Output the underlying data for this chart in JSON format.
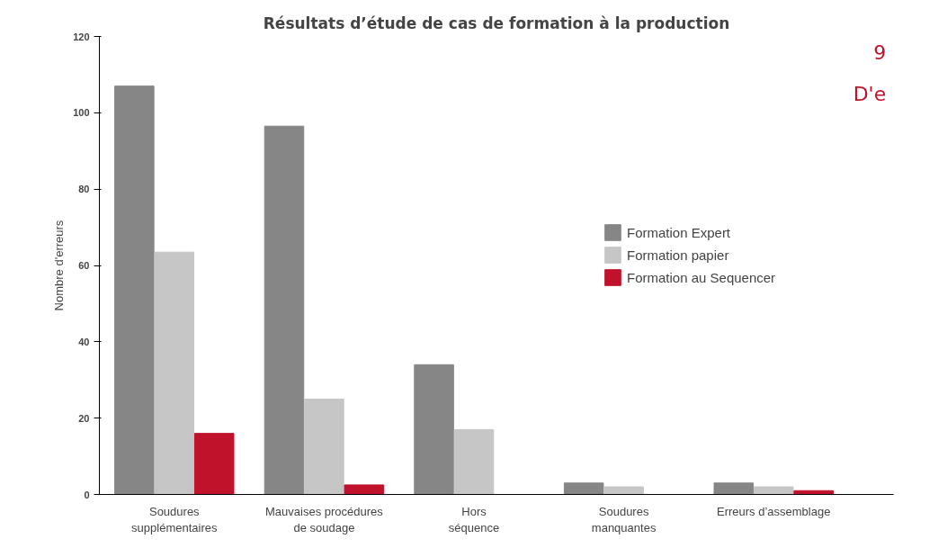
{
  "chart_data": {
    "type": "bar",
    "title": "Résultats d’étude de cas de formation à la production",
    "ylabel": "Nombre d'erreurs",
    "categories": [
      "Soudures\nsupplémentaires",
      "Mauvaises procédures\nde soudage",
      "Hors\nséquence",
      "Soudures\nmanquantes",
      "Erreurs d’assemblage"
    ],
    "series": [
      {
        "name": "Formation Expert",
        "color": "#868686",
        "values": [
          107,
          96.5,
          34,
          3,
          3
        ]
      },
      {
        "name": "Formation papier",
        "color": "#c6c6c6",
        "values": [
          63.5,
          25,
          17,
          2,
          2
        ]
      },
      {
        "name": "Formation au Sequencer",
        "color": "#c0122b",
        "values": [
          16,
          2.5,
          0,
          0,
          1
        ]
      }
    ],
    "ylim": [
      0,
      120
    ],
    "yticks": [
      0,
      20,
      40,
      60,
      80,
      100,
      120
    ],
    "grid": false,
    "legend": "right",
    "annotations": [
      "9",
      "D'e"
    ]
  }
}
